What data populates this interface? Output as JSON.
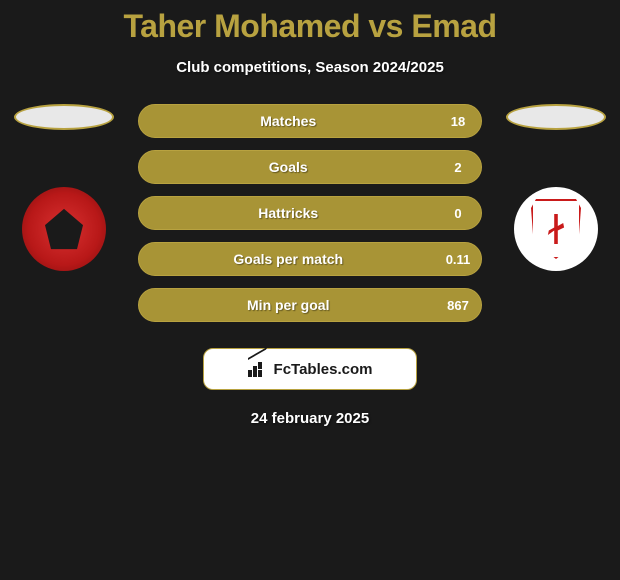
{
  "title": "Taher Mohamed vs Emad",
  "subtitle": "Club competitions, Season 2024/2025",
  "date": "24 february 2025",
  "brand": "FcTables.com",
  "colors": {
    "accent": "#b8a240",
    "bar_fill": "#a89436",
    "text": "#ffffff",
    "background": "#1a1a1a"
  },
  "player_left": {
    "name": "Taher Mohamed",
    "club_badge": "al-ahly"
  },
  "player_right": {
    "name": "Emad",
    "club_badge": "zamalek"
  },
  "stats": [
    {
      "label": "Matches",
      "value": "18"
    },
    {
      "label": "Goals",
      "value": "2"
    },
    {
      "label": "Hattricks",
      "value": "0"
    },
    {
      "label": "Goals per match",
      "value": "0.11"
    },
    {
      "label": "Min per goal",
      "value": "867"
    }
  ]
}
